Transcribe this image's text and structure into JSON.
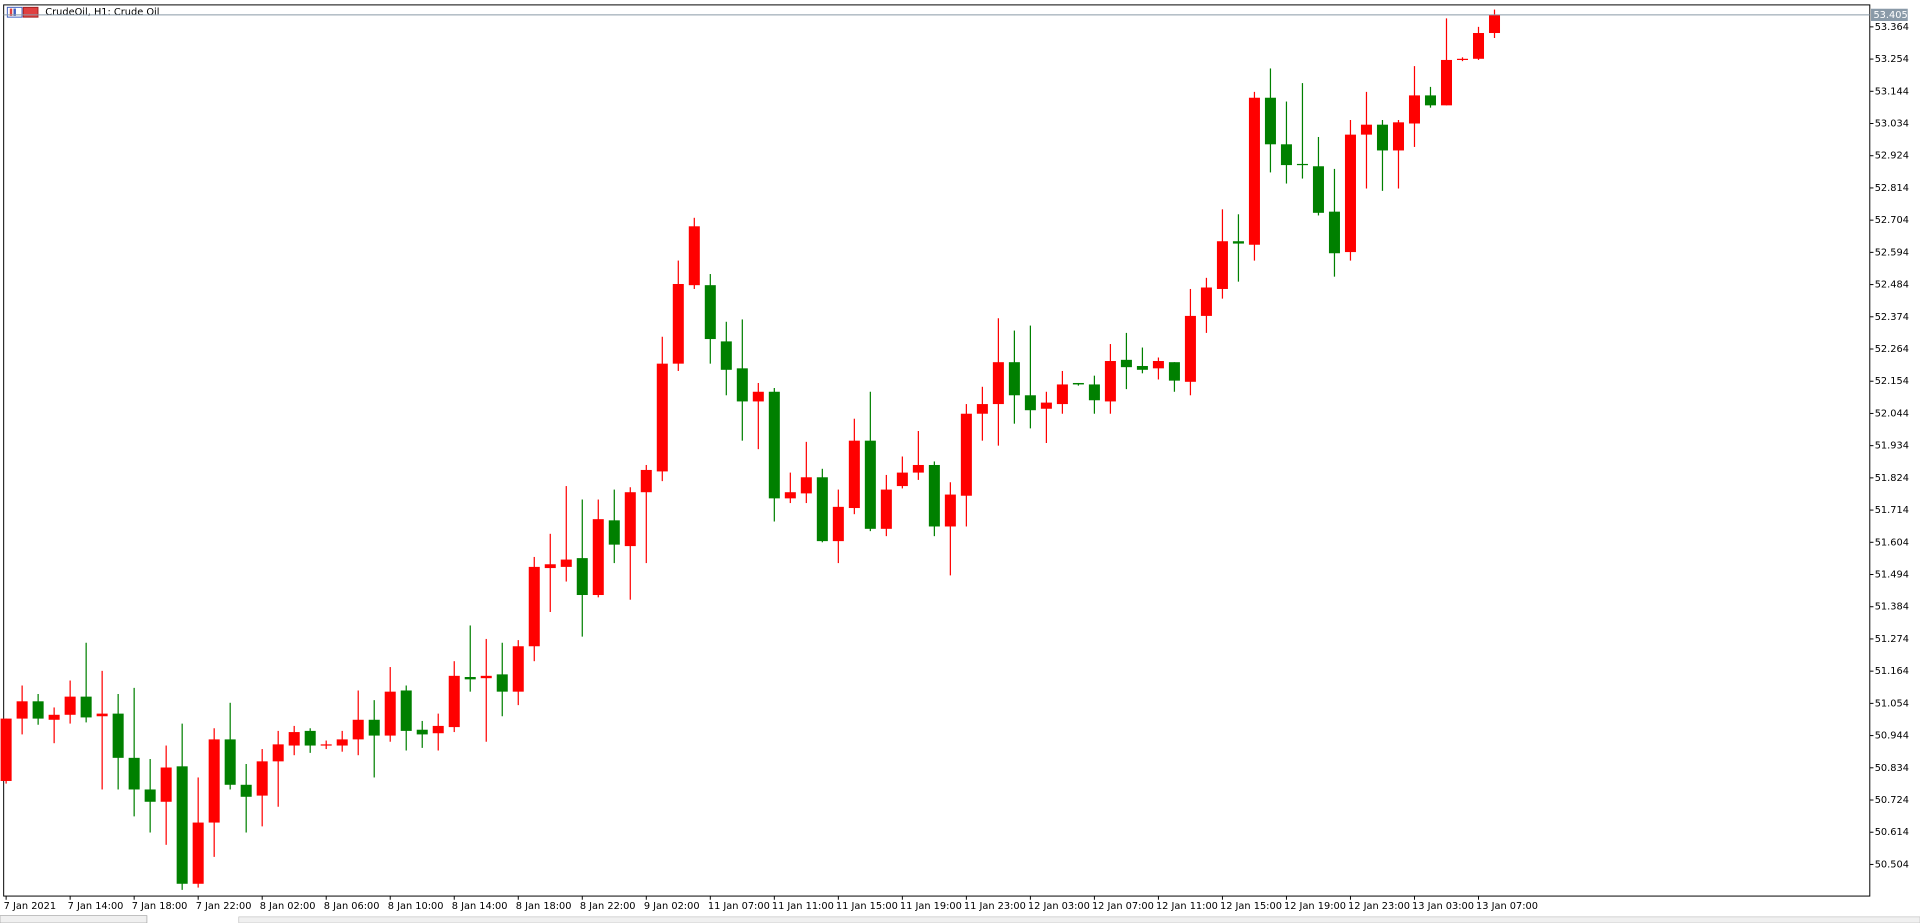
{
  "chart_data": {
    "type": "candlestick",
    "title": "CrudeOil, H1:  Crude Oil",
    "up_color": "#ff0000",
    "down_color": "#008000",
    "current_price": 53.405,
    "categories": [
      "7 Jan 2021",
      null,
      null,
      null,
      "7 Jan 14:00",
      null,
      null,
      null,
      "7 Jan 18:00",
      null,
      null,
      null,
      "7 Jan 22:00",
      null,
      null,
      null,
      "8 Jan 02:00",
      null,
      null,
      null,
      "8 Jan 06:00",
      null,
      null,
      null,
      "8 Jan 10:00",
      null,
      null,
      null,
      "8 Jan 14:00",
      null,
      null,
      null,
      "8 Jan 18:00",
      null,
      null,
      null,
      "8 Jan 22:00",
      null,
      null,
      null,
      "9 Jan 02:00",
      null,
      null,
      null,
      "11 Jan 07:00",
      null,
      null,
      null,
      "11 Jan 11:00",
      null,
      null,
      null,
      "11 Jan 15:00",
      null,
      null,
      null,
      "11 Jan 19:00",
      null,
      null,
      null,
      "11 Jan 23:00",
      null,
      null,
      null,
      "12 Jan 03:00",
      null,
      null,
      null,
      "12 Jan 07:00",
      null,
      null,
      null,
      "12 Jan 11:00",
      null,
      null,
      null,
      "12 Jan 15:00",
      null,
      null,
      null,
      "12 Jan 19:00",
      null,
      null,
      null,
      "12 Jan 23:00",
      null,
      null,
      null,
      "13 Jan 03:00",
      null,
      null,
      null,
      "13 Jan 07:00",
      null
    ],
    "open": [
      50.789,
      51.002,
      51.061,
      50.998,
      51.015,
      51.077,
      51.01,
      51.019,
      50.868,
      50.76,
      50.718,
      50.839,
      50.438,
      50.647,
      50.931,
      50.776,
      50.739,
      50.856,
      50.91,
      50.96,
      50.91,
      50.91,
      50.931,
      50.998,
      50.944,
      51.098,
      50.964,
      50.952,
      50.973,
      51.144,
      51.14,
      51.153,
      51.094,
      51.249,
      51.516,
      51.52,
      51.55,
      51.424,
      51.679,
      51.591,
      51.775,
      51.846,
      52.214,
      52.482,
      52.482,
      52.29,
      52.198,
      52.085,
      52.118,
      51.754,
      51.771,
      51.826,
      51.608,
      51.721,
      51.951,
      51.65,
      51.796,
      51.842,
      51.868,
      51.658,
      51.763,
      52.043,
      52.076,
      52.219,
      52.106,
      52.06,
      52.076,
      52.148,
      52.143,
      52.085,
      52.227,
      52.206,
      52.198,
      52.219,
      52.152,
      52.377,
      52.469,
      52.632,
      52.62,
      53.122,
      52.963,
      52.896,
      52.888,
      52.733,
      52.595,
      52.996,
      53.03,
      52.942,
      53.034,
      53.13,
      53.096,
      53.251,
      53.255,
      53.343
    ],
    "high": [
      51.002,
      51.115,
      51.086,
      51.04,
      51.132,
      51.261,
      51.165,
      51.086,
      51.107,
      50.864,
      50.91,
      50.985,
      50.801,
      50.969,
      51.056,
      50.847,
      50.898,
      50.96,
      50.977,
      50.969,
      50.927,
      50.96,
      51.098,
      51.065,
      51.178,
      51.115,
      50.994,
      51.019,
      51.198,
      51.32,
      51.274,
      51.261,
      51.27,
      51.554,
      51.633,
      51.796,
      51.75,
      51.75,
      51.784,
      51.792,
      51.868,
      52.306,
      52.566,
      52.712,
      52.52,
      52.357,
      52.365,
      52.148,
      52.131,
      51.842,
      51.947,
      51.855,
      51.784,
      52.026,
      52.118,
      51.834,
      51.897,
      51.984,
      51.88,
      51.809,
      52.076,
      52.135,
      52.369,
      52.327,
      52.344,
      52.118,
      52.189,
      52.148,
      52.173,
      52.281,
      52.319,
      52.269,
      52.235,
      52.219,
      52.469,
      52.507,
      52.741,
      52.724,
      53.142,
      53.222,
      53.109,
      53.172,
      52.988,
      52.879,
      53.046,
      53.142,
      53.046,
      53.046,
      53.23,
      53.159,
      53.393,
      53.26,
      53.364,
      53.423
    ],
    "low": [
      50.78,
      50.948,
      50.981,
      50.918,
      50.985,
      50.989,
      50.76,
      50.76,
      50.668,
      50.613,
      50.571,
      50.417,
      50.425,
      50.53,
      50.76,
      50.613,
      50.634,
      50.701,
      50.877,
      50.885,
      50.898,
      50.889,
      50.877,
      50.801,
      50.923,
      50.893,
      50.902,
      50.893,
      50.956,
      51.094,
      50.923,
      51.01,
      51.048,
      51.198,
      51.366,
      51.47,
      51.282,
      51.416,
      51.533,
      51.408,
      51.533,
      51.813,
      52.189,
      52.469,
      52.214,
      52.106,
      51.951,
      51.922,
      51.675,
      51.738,
      51.738,
      51.604,
      51.533,
      51.7,
      51.642,
      51.625,
      51.788,
      51.817,
      51.625,
      51.491,
      51.658,
      51.951,
      51.934,
      52.009,
      51.993,
      51.943,
      52.043,
      52.139,
      52.043,
      52.043,
      52.127,
      52.181,
      52.16,
      52.118,
      52.106,
      52.319,
      52.436,
      52.494,
      52.566,
      52.867,
      52.829,
      52.846,
      52.72,
      52.511,
      52.566,
      52.812,
      52.804,
      52.812,
      52.954,
      53.088,
      53.096,
      53.247,
      53.251,
      53.326
    ],
    "close": [
      51.002,
      51.061,
      51.002,
      51.015,
      51.077,
      51.006,
      51.019,
      50.868,
      50.76,
      50.718,
      50.835,
      50.438,
      50.647,
      50.931,
      50.776,
      50.735,
      50.856,
      50.914,
      50.956,
      50.91,
      50.914,
      50.931,
      50.998,
      50.944,
      51.094,
      50.96,
      50.948,
      50.977,
      51.148,
      51.136,
      51.148,
      51.094,
      51.249,
      51.52,
      51.529,
      51.545,
      51.424,
      51.683,
      51.596,
      51.775,
      51.851,
      52.214,
      52.486,
      52.683,
      52.298,
      52.193,
      52.085,
      52.118,
      51.754,
      51.775,
      51.826,
      51.608,
      51.725,
      51.951,
      51.65,
      51.784,
      51.842,
      51.868,
      51.658,
      51.767,
      52.043,
      52.076,
      52.219,
      52.106,
      52.055,
      52.081,
      52.143,
      52.143,
      52.089,
      52.223,
      52.202,
      52.193,
      52.223,
      52.156,
      52.377,
      52.474,
      52.632,
      52.624,
      53.122,
      52.963,
      52.892,
      52.892,
      52.729,
      52.591,
      52.996,
      53.03,
      52.942,
      53.038,
      53.13,
      53.096,
      53.251,
      53.255,
      53.343,
      53.406
    ],
    "ylim": [
      50.396,
      53.439
    ],
    "yticks": [
      50.504,
      50.614,
      50.724,
      50.834,
      50.944,
      51.054,
      51.164,
      51.274,
      51.384,
      51.494,
      51.604,
      51.714,
      51.824,
      51.934,
      52.044,
      52.154,
      52.264,
      52.374,
      52.484,
      52.594,
      52.704,
      52.814,
      52.924,
      53.034,
      53.144,
      53.254,
      53.364
    ]
  }
}
